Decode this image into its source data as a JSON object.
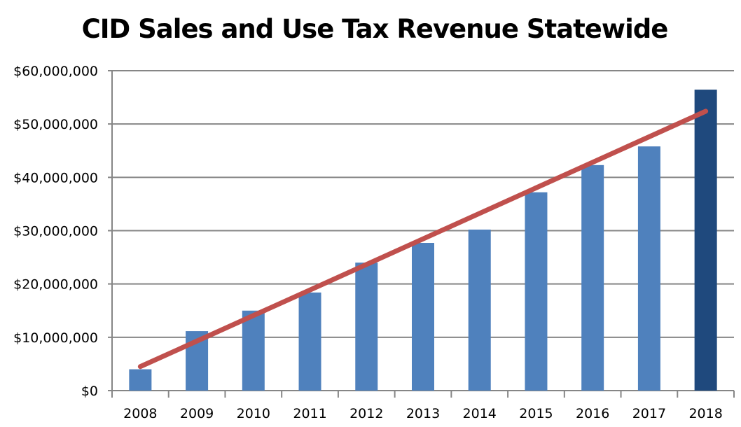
{
  "chart_data": {
    "type": "bar",
    "title": "CID Sales and Use Tax Revenue Statewide",
    "xlabel": "",
    "ylabel": "",
    "categories": [
      "2008",
      "2009",
      "2010",
      "2011",
      "2012",
      "2013",
      "2014",
      "2015",
      "2016",
      "2017",
      "2018"
    ],
    "values": [
      4000000,
      11150000,
      15000000,
      18400000,
      24000000,
      27700000,
      30200000,
      37200000,
      42300000,
      45800000,
      56450000
    ],
    "bar_colors": [
      "#4f81bd",
      "#4f81bd",
      "#4f81bd",
      "#4f81bd",
      "#4f81bd",
      "#4f81bd",
      "#4f81bd",
      "#4f81bd",
      "#4f81bd",
      "#4f81bd",
      "#1f497d"
    ],
    "trendline": {
      "type": "linear",
      "start": 4500000,
      "end": 52400000,
      "color": "#c0504d"
    },
    "ylim": [
      0,
      60000000
    ],
    "yticks": [
      "$0",
      "$10,000,000",
      "$20,000,000",
      "$30,000,000",
      "$40,000,000",
      "$50,000,000",
      "$60,000,000"
    ],
    "grid": true,
    "legend": "none"
  }
}
